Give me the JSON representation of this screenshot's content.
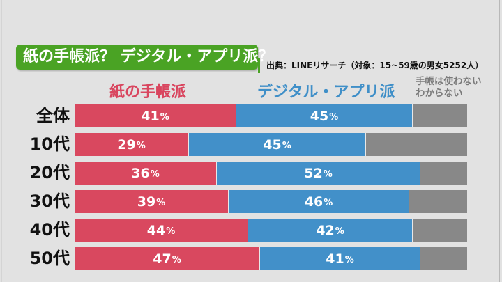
{
  "title": "紙の手帳派？ デジタル・アプリ派？",
  "source": "出典：LINEリサーチ（対象：15~59歳の男女5252人）",
  "colors": {
    "title_bg": "#4aa324",
    "paper": "#d9485f",
    "digital": "#4290c9",
    "other": "#888888"
  },
  "chart_data": {
    "type": "bar",
    "orientation": "horizontal",
    "stacked": true,
    "title": "紙の手帳派？ デジタル・アプリ派？",
    "xlabel": "",
    "ylabel": "",
    "xlim": [
      0,
      100
    ],
    "unit": "%",
    "categories": [
      "全体",
      "10代",
      "20代",
      "30代",
      "40代",
      "50代"
    ],
    "series": [
      {
        "name": "紙の手帳派",
        "values": [
          41,
          29,
          36,
          39,
          44,
          47
        ],
        "labeled": true
      },
      {
        "name": "デジタル・アプリ派",
        "values": [
          45,
          45,
          52,
          46,
          42,
          41
        ],
        "labeled": true
      },
      {
        "name": "手帳は使わない わからない",
        "values": [
          14,
          26,
          12,
          15,
          14,
          12
        ],
        "labeled": false
      }
    ],
    "legend": {
      "placement": "top",
      "entries": [
        "紙の手帳派",
        "デジタル・アプリ派",
        "手帳は使わない",
        "わからない"
      ]
    },
    "grid": false
  }
}
